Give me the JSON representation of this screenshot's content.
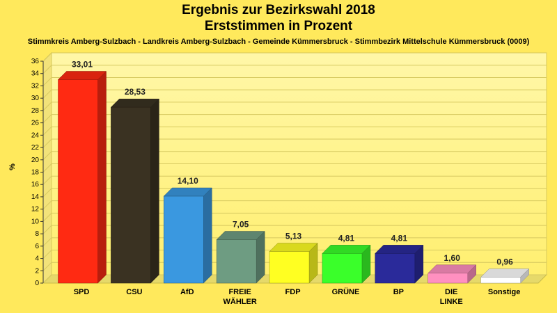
{
  "header": {
    "title_line1": "Ergebnis zur Bezirkswahl 2018",
    "title_line2": "Erststimmen in Prozent",
    "subtitle": "Stimmkreis Amberg-Sulzbach - Landkreis Amberg-Sulzbach - Gemeinde Kümmersbruck - Stimmbezirk Mittelschule Kümmersbruck (0009)"
  },
  "chart_data": {
    "type": "bar",
    "title": "Ergebnis zur Bezirkswahl 2018 Erststimmen in Prozent",
    "ylabel": "%",
    "xlabel": "",
    "ylim": [
      0,
      36
    ],
    "yticks": [
      0,
      2,
      4,
      6,
      8,
      10,
      12,
      14,
      16,
      18,
      20,
      22,
      24,
      26,
      28,
      30,
      32,
      34,
      36
    ],
    "grid": true,
    "categories": [
      "SPD",
      "CSU",
      "AfD",
      "FREIE WÄHLER",
      "FDP",
      "GRÜNE",
      "BP",
      "DIE LINKE",
      "Sonstige"
    ],
    "values": [
      33.01,
      28.53,
      14.1,
      7.05,
      5.13,
      4.81,
      4.81,
      1.6,
      0.96
    ],
    "value_labels": [
      "33,01",
      "28,53",
      "14,10",
      "7,05",
      "5,13",
      "4,81",
      "4,81",
      "1,60",
      "0,96"
    ],
    "colors": [
      "#ff2a12",
      "#3a3222",
      "#3a98e0",
      "#6e9c82",
      "#ffff22",
      "#3aff2a",
      "#2a2a9a",
      "#ff90c0",
      "#ffffff"
    ]
  }
}
